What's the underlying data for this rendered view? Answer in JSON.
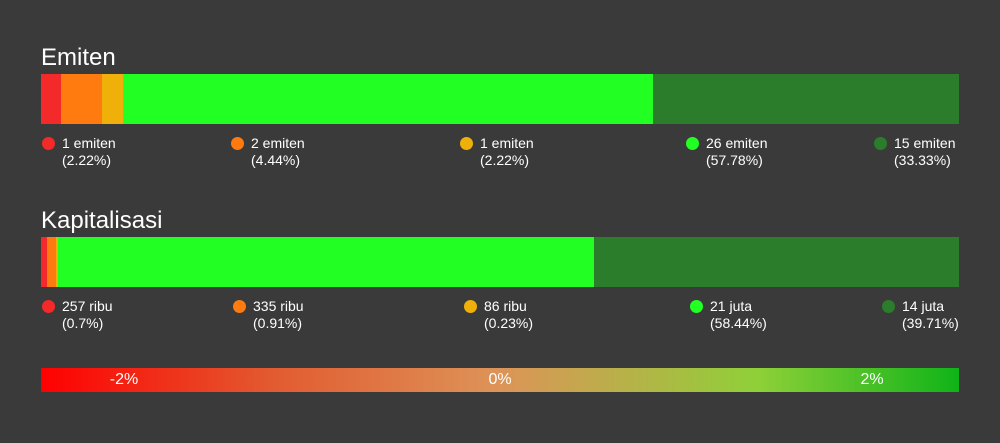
{
  "emiten": {
    "title": "Emiten",
    "items": [
      {
        "count": "1 emiten",
        "pct": "(2.22%)",
        "color": "#f42a2a"
      },
      {
        "count": "2 emiten",
        "pct": "(4.44%)",
        "color": "#ff7a0f"
      },
      {
        "count": "1 emiten",
        "pct": "(2.22%)",
        "color": "#f0b00a"
      },
      {
        "count": "26 emiten",
        "pct": "(57.78%)",
        "color": "#22ff22"
      },
      {
        "count": "15 emiten",
        "pct": "(33.33%)",
        "color": "#2b7d2b"
      }
    ]
  },
  "kapitalisasi": {
    "title": "Kapitalisasi",
    "items": [
      {
        "count": "257 ribu",
        "pct": "(0.7%)",
        "color": "#f42a2a"
      },
      {
        "count": "335 ribu",
        "pct": "(0.91%)",
        "color": "#ff7a0f"
      },
      {
        "count": "86 ribu",
        "pct": "(0.23%)",
        "color": "#f0b00a"
      },
      {
        "count": "21 juta",
        "pct": "(58.44%)",
        "color": "#22ff22"
      },
      {
        "count": "14 juta",
        "pct": "(39.71%)",
        "color": "#2b7d2b"
      }
    ]
  },
  "scale": {
    "labels": [
      "-2%",
      "0%",
      "2%"
    ],
    "colors": [
      "#ff0000",
      "#dd9458",
      "#0fb418"
    ]
  },
  "chart_data": [
    {
      "type": "bar",
      "title": "Emiten",
      "categories": [
        "1 emiten",
        "2 emiten",
        "1 emiten",
        "26 emiten",
        "15 emiten"
      ],
      "values": [
        2.22,
        4.44,
        2.22,
        57.78,
        33.33
      ],
      "colors": [
        "#f42a2a",
        "#ff7a0f",
        "#f0b00a",
        "#22ff22",
        "#2b7d2b"
      ]
    },
    {
      "type": "bar",
      "title": "Kapitalisasi",
      "categories": [
        "257 ribu",
        "335 ribu",
        "86 ribu",
        "21 juta",
        "14 juta"
      ],
      "values": [
        0.7,
        0.91,
        0.23,
        58.44,
        39.71
      ],
      "colors": [
        "#f42a2a",
        "#ff7a0f",
        "#f0b00a",
        "#22ff22",
        "#2b7d2b"
      ]
    }
  ]
}
